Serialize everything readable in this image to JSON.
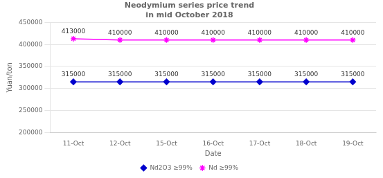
{
  "chart_data": {
    "type": "line",
    "title": "Neodymium series price trend\nin mid October 2018",
    "x_label": "Date",
    "y_label": "Yuan/ton",
    "categories": [
      "11-Oct",
      "12-Oct",
      "15-Oct",
      "16-Oct",
      "17-Oct",
      "18-Oct",
      "19-Oct"
    ],
    "series": [
      {
        "name": "Nd2O3 ≥99%",
        "color": "#0000CD",
        "marker": "diamond",
        "values": [
          315000,
          315000,
          315000,
          315000,
          315000,
          315000,
          315000
        ]
      },
      {
        "name": "Nd ≥99%",
        "color": "#FF00FF",
        "marker": "star",
        "values": [
          413000,
          410000,
          410000,
          410000,
          410000,
          410000,
          410000
        ]
      }
    ],
    "ylim": [
      200000,
      450000
    ],
    "yticks": [
      200000,
      250000,
      300000,
      350000,
      400000,
      450000
    ],
    "grid": true,
    "legend": "bottom",
    "data_labels": true
  }
}
